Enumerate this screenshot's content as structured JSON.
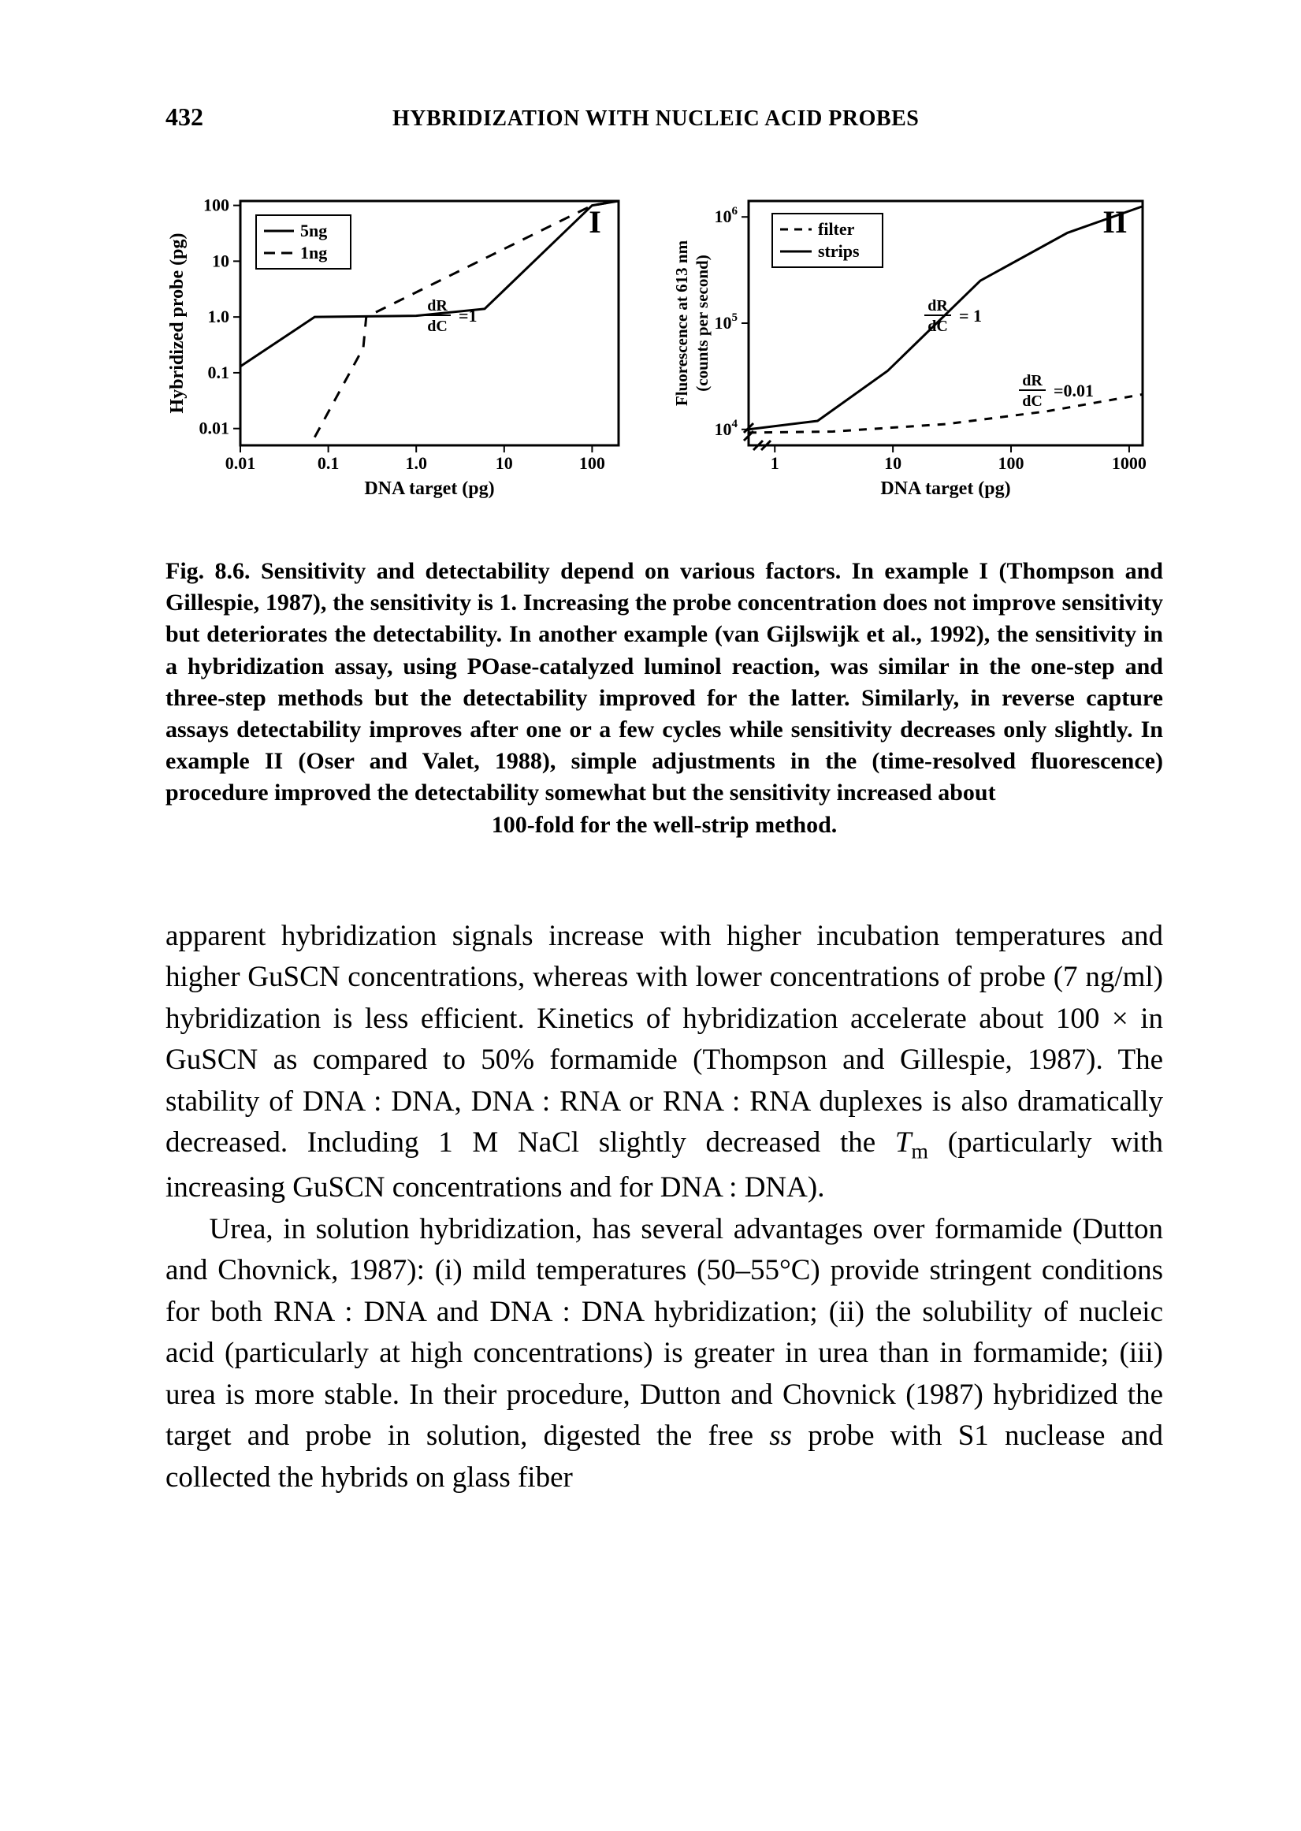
{
  "page": {
    "number": "432",
    "running_head": "HYBRIDIZATION WITH NUCLEIC ACID PROBES"
  },
  "chart1": {
    "panel_label": "I",
    "type": "line-log-log",
    "xlabel": "DNA target (pg)",
    "ylabel": "Hybridized probe (pg)",
    "xticks": [
      "0.01",
      "0.1",
      "1.0",
      "10",
      "100"
    ],
    "yticks": [
      "0.01",
      "0.1",
      "1.0",
      "10",
      "100"
    ],
    "xlim": [
      0.01,
      200
    ],
    "ylim": [
      0.005,
      120
    ],
    "legend": {
      "items": [
        "5ng",
        "1ng"
      ],
      "styles": [
        "solid",
        "dash-long"
      ]
    },
    "annotation": {
      "text_html": "dR/dC = 1",
      "frac_top": "dR",
      "frac_bot": "dC",
      "eq": "=1"
    },
    "series": {
      "5ng": {
        "style": "solid",
        "color": "#000000",
        "points": [
          [
            0.01,
            0.13
          ],
          [
            0.07,
            1.0
          ],
          [
            1.0,
            1.05
          ],
          [
            6,
            1.4
          ],
          [
            100,
            100
          ],
          [
            200,
            120
          ]
        ]
      },
      "1ng": {
        "style": "dash",
        "color": "#000000",
        "points": [
          [
            0.07,
            0.007
          ],
          [
            0.25,
            0.28
          ],
          [
            0.27,
            1.0
          ],
          [
            100,
            100
          ],
          [
            200,
            120
          ]
        ]
      }
    },
    "line_width": 3,
    "axis_line_width": 3,
    "tick_font_size": 22,
    "label_font_size": 24,
    "background": "#ffffff"
  },
  "chart2": {
    "panel_label": "II",
    "type": "line-log-log",
    "xlabel": "DNA target (pg)",
    "ylabel_html": "Fluorescence at 613 nm\n(counts per second)",
    "ylabel_line1": "Fluorescence at 613 nm",
    "ylabel_line2": "(counts per second)",
    "xticks": [
      "1",
      "10",
      "100",
      "1000"
    ],
    "yticks_exp": [
      "4",
      "5",
      "6"
    ],
    "ytick_prefix": "10",
    "xlim": [
      0.6,
      1300
    ],
    "ylim_exp": [
      3.85,
      6.15
    ],
    "legend": {
      "items": [
        "filter",
        "strips"
      ],
      "styles": [
        "dash-spaced",
        "solid"
      ]
    },
    "annotations": [
      {
        "frac_top": "dR",
        "frac_bot": "dC",
        "eq": "= 1"
      },
      {
        "frac_top": "dR",
        "frac_bot": "dC",
        "eq": "=0.01"
      }
    ],
    "series": {
      "filter": {
        "style": "dash-spaced",
        "color": "#000000",
        "points_logy": [
          [
            0.6,
            3.97
          ],
          [
            3.1,
            3.98
          ],
          [
            28,
            4.05
          ],
          [
            200,
            4.17
          ],
          [
            1300,
            4.33
          ]
        ]
      },
      "strips": {
        "style": "solid",
        "color": "#000000",
        "points_logy": [
          [
            0.6,
            4.0
          ],
          [
            2.3,
            4.08
          ],
          [
            9,
            4.55
          ],
          [
            55,
            5.4
          ],
          [
            300,
            5.85
          ],
          [
            1300,
            6.1
          ]
        ]
      }
    },
    "axis_break": true,
    "line_width": 3,
    "axis_line_width": 3,
    "tick_font_size": 22,
    "label_font_size": 24,
    "background": "#ffffff"
  },
  "caption": {
    "text_main": "Fig. 8.6. Sensitivity and detectability depend on various factors. In example I (Thompson and Gillespie, 1987), the sensitivity is 1. Increasing the probe concentration does not improve sensitivity but deteriorates the detectability. In another example (van Gijlswijk et al., 1992), the sensitivity in a hybridization assay, using POase-catalyzed luminol reaction, was similar in the one-step and three-step methods but the detectability improved for the latter. Similarly, in reverse capture assays detectability improves after one or a few cycles while sensitivity decreases only slightly. In example II (Oser and Valet, 1988), simple adjustments in the (time-resolved fluorescence) procedure improved the detectability somewhat but the sensitivity increased about",
    "text_last": "100-fold for the well-strip method."
  },
  "body": {
    "p1": "apparent hybridization signals increase with higher incubation temperatures and higher GuSCN concentrations, whereas with lower concentrations of probe (7 ng/ml) hybridization is less efficient. Kinetics of hybridization accelerate about 100 × in GuSCN as compared to 50% formamide (Thompson and Gillespie, 1987). The stability of DNA : DNA, DNA : RNA or RNA : RNA duplexes is also dramatically decreased. Including 1 M NaCl slightly decreased the ",
    "p1_tail": " (particularly with increasing GuSCN concentrations and for DNA : DNA).",
    "tm": "T",
    "tm_sub": "m",
    "p2_head": "Urea, in solution hybridization, has several advantages over formamide (Dutton and Chovnick, 1987): (i) mild temperatures (50–55°C) provide stringent conditions for both RNA : DNA and DNA : DNA hybridization; (ii) the solubility of nucleic acid (particularly at high concentrations) is greater in urea than in formamide; (iii) urea is more stable. In their procedure, Dutton and Chovnick (1987) hybridized the target and probe in solution, digested the free ",
    "ss": "ss",
    "p2_tail": " probe with S1 nuclease and collected the hybrids on glass fiber"
  }
}
